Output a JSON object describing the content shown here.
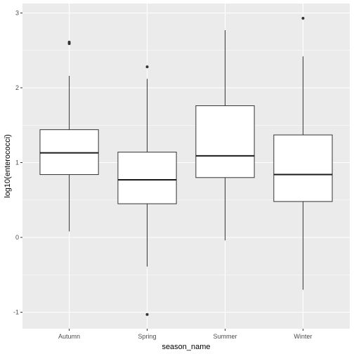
{
  "chart_data": {
    "type": "boxplot",
    "xlabel": "season_name",
    "ylabel": "log10(enterococci)",
    "categories": [
      "Autumn",
      "Spring",
      "Summer",
      "Winter"
    ],
    "ylim": [
      -1.2,
      3.1
    ],
    "yticks": [
      -1,
      0,
      1,
      2,
      3
    ],
    "grid": true,
    "colors": {
      "panel": "#ebebeb",
      "grid_major": "#ffffff",
      "box_fill": "#ffffff",
      "box_stroke": "#333333",
      "median": "#1a1a1a"
    },
    "boxes": [
      {
        "category": "Autumn",
        "whisker_low": 0.08,
        "q1": 0.84,
        "median": 1.13,
        "q3": 1.44,
        "whisker_high": 2.16,
        "outliers": [
          2.59,
          2.61
        ]
      },
      {
        "category": "Spring",
        "whisker_low": -0.39,
        "q1": 0.45,
        "median": 0.77,
        "q3": 1.14,
        "whisker_high": 2.12,
        "outliers": [
          2.28,
          -1.03
        ]
      },
      {
        "category": "Summer",
        "whisker_low": -0.04,
        "q1": 0.8,
        "median": 1.09,
        "q3": 1.76,
        "whisker_high": 2.77,
        "outliers": []
      },
      {
        "category": "Winter",
        "whisker_low": -0.7,
        "q1": 0.48,
        "median": 0.84,
        "q3": 1.37,
        "whisker_high": 2.42,
        "outliers": [
          2.93
        ]
      }
    ]
  }
}
